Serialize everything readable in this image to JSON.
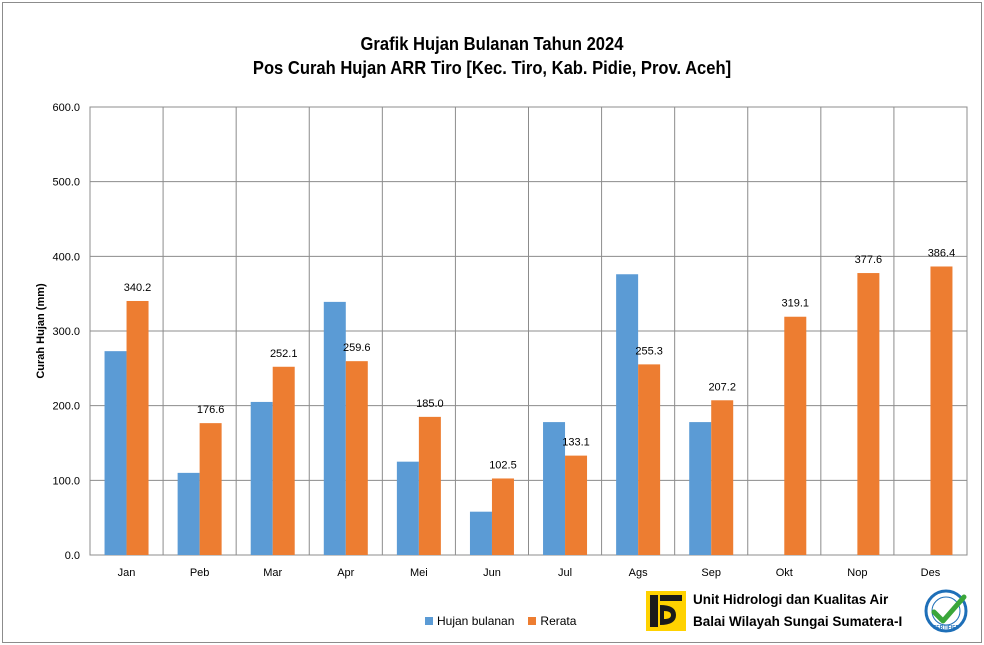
{
  "chart_data": {
    "type": "bar",
    "title": "Grafik Hujan Bulanan Tahun 2024",
    "subtitle": "Pos Curah Hujan ARR  Tiro [Kec. Tiro, Kab. Pidie, Prov. Aceh]",
    "xlabel": "",
    "ylabel": "Curah Hujan (mm)",
    "ylim": [
      0,
      600
    ],
    "yticks": [
      "0.0",
      "100.0",
      "200.0",
      "300.0",
      "400.0",
      "500.0",
      "600.0"
    ],
    "grid": true,
    "legend_position": "bottom",
    "categories": [
      "Jan",
      "Peb",
      "Mar",
      "Apr",
      "Mei",
      "Jun",
      "Jul",
      "Ags",
      "Sep",
      "Okt",
      "Nop",
      "Des"
    ],
    "series": [
      {
        "name": "Hujan bulanan",
        "color": "#5b9bd5",
        "values": [
          273,
          110,
          205,
          339,
          125,
          58,
          178,
          376,
          178,
          null,
          null,
          null
        ]
      },
      {
        "name": "Rerata",
        "color": "#ed7d31",
        "values": [
          340.2,
          176.6,
          252.1,
          259.6,
          185.0,
          102.5,
          133.1,
          255.3,
          207.2,
          319.1,
          377.6,
          386.4
        ],
        "labels": [
          "340.2",
          "176.6",
          "252.1",
          "259.6",
          "185.0",
          "102.5",
          "133.1",
          "255.3",
          "207.2",
          "319.1",
          "377.6",
          "386.4"
        ]
      }
    ]
  },
  "footer": {
    "org_line1": "Unit Hidrologi dan Kualitas Air",
    "org_line2": "Balai Wilayah Sungai Sumatera-I",
    "logo_icon": "pupr-logo-icon",
    "cert_icon": "iso-certified-badge-icon",
    "cert_text": "CERTIFIED"
  }
}
